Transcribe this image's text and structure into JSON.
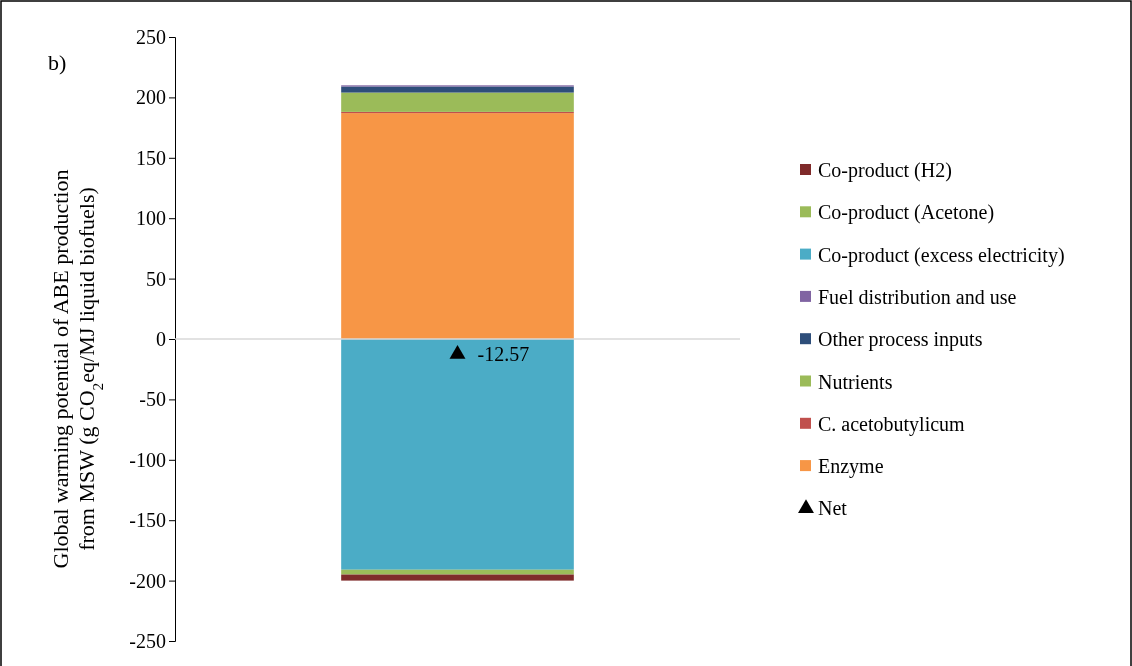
{
  "chart_data": {
    "type": "bar",
    "stacked": true,
    "categories": [
      null
    ],
    "ylabel": "Global warming potential of ABE production from MSW (g CO$_{2}$eq/MJ liquid biofuels)",
    "annotations": [
      "b)"
    ],
    "ylim": [
      -250,
      250
    ],
    "yticks": [
      -250,
      -200,
      -150,
      -100,
      -50,
      0,
      50,
      100,
      150,
      200,
      250
    ],
    "legend": "right",
    "series": [
      {
        "name": "Enzyme",
        "color": "#f79646",
        "values": [
          187
        ]
      },
      {
        "name": "C. acetobutylicum",
        "color": "#c0504d",
        "values": [
          1
        ]
      },
      {
        "name": "Nutrients",
        "color": "#9bbb59",
        "values": [
          16
        ]
      },
      {
        "name": "Other process inputs",
        "color": "#2e4e7a",
        "values": [
          5
        ]
      },
      {
        "name": "Fuel distribution and use",
        "color": "#8064a2",
        "values": [
          1
        ]
      },
      {
        "name": "Co-product (excess electricity)",
        "color": "#4bacc6",
        "values": [
          -191
        ]
      },
      {
        "name": "Co-product (Acetone)",
        "color": "#9bbb59",
        "values": [
          -4
        ]
      },
      {
        "name": "Co-product (H2)",
        "color": "#7f2a2a",
        "values": [
          -5
        ]
      },
      {
        "name": "Net",
        "type": "scatter",
        "marker": "triangle",
        "color": "#000000",
        "x": [
          null
        ],
        "values": [
          -12.57
        ],
        "value_labels": [
          "-12.57"
        ]
      }
    ]
  }
}
